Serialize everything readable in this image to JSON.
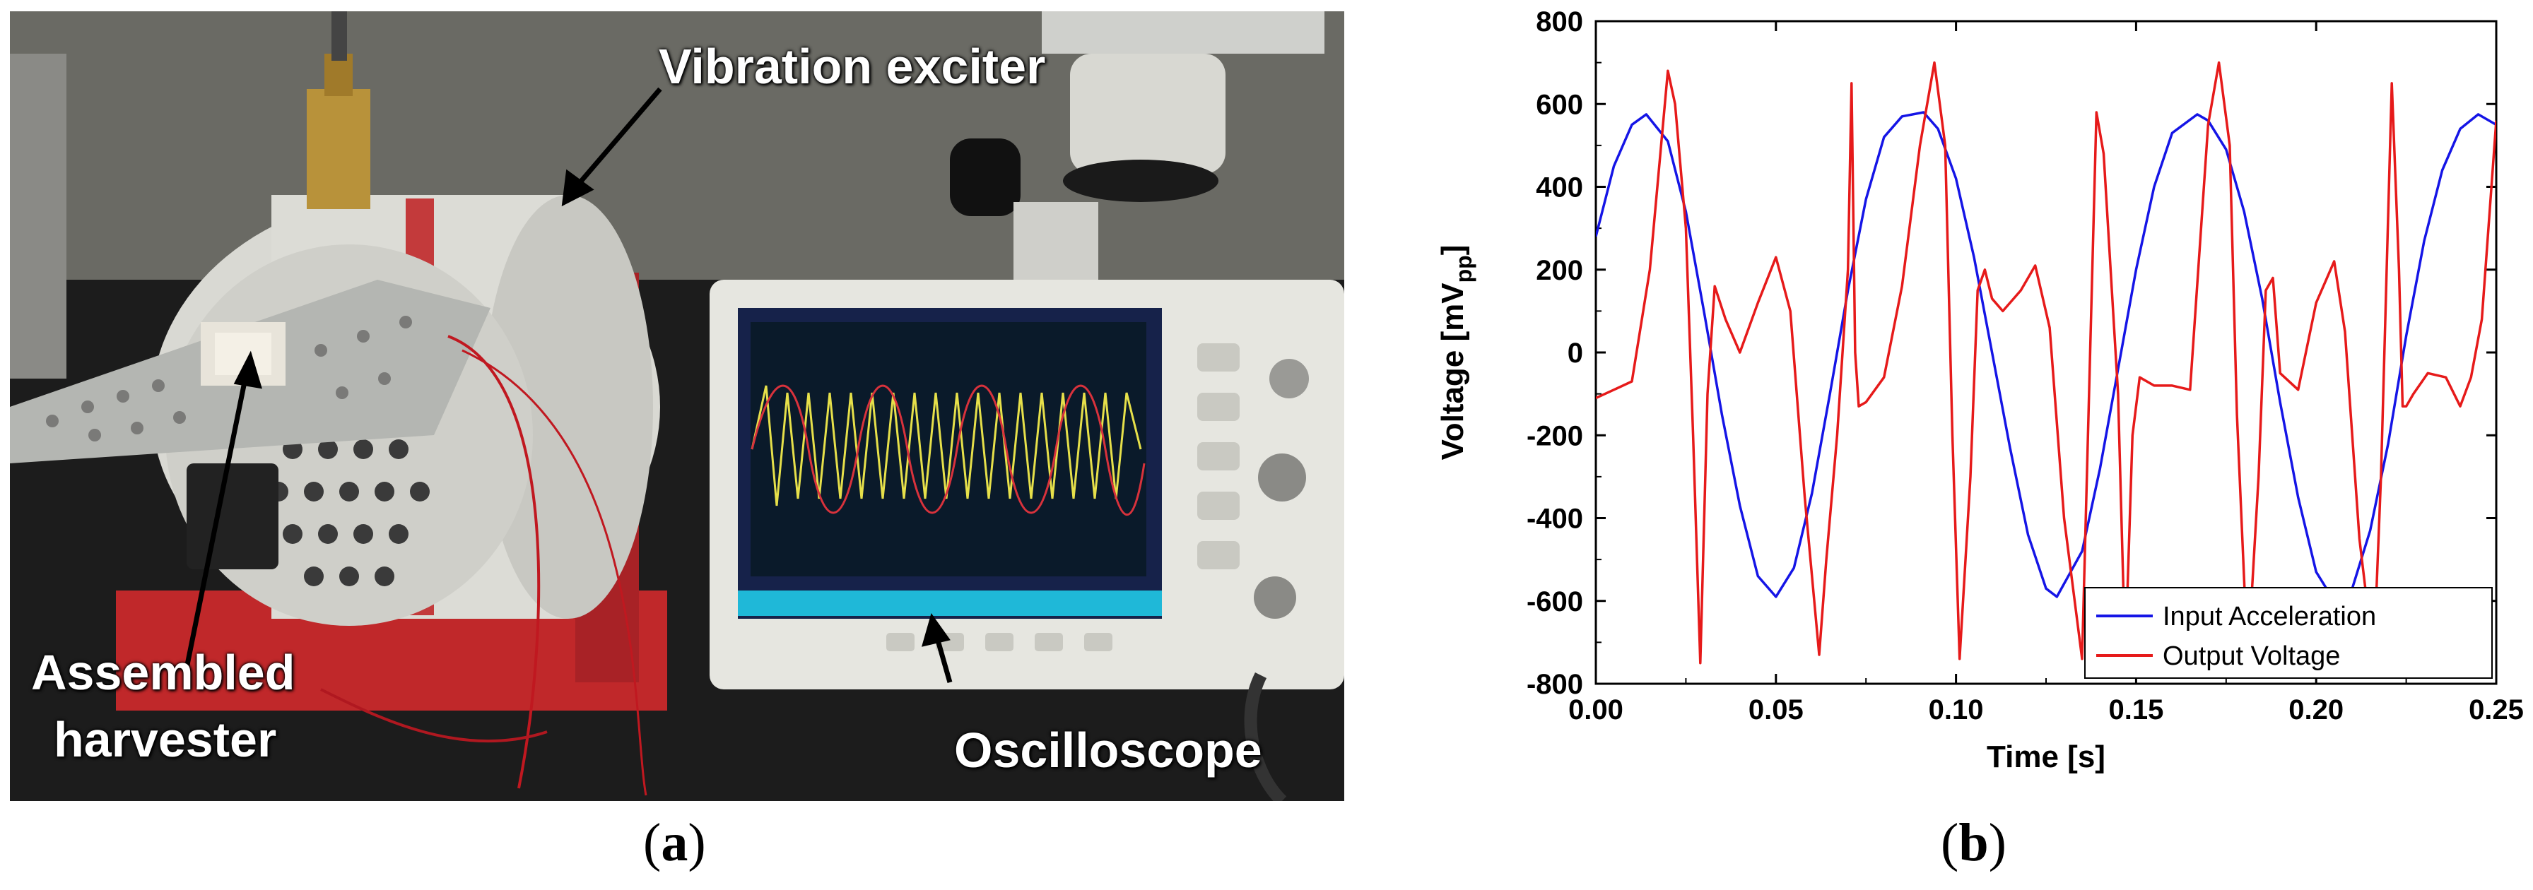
{
  "panel_a": {
    "caption": "a",
    "labels": {
      "vibration_exciter": "Vibration exciter",
      "assembled_harvester_line1": "Assembled",
      "assembled_harvester_line2": "harvester",
      "oscilloscope": "Oscilloscope"
    },
    "colors": {
      "exciter_body": "#dcdcd6",
      "exciter_stand": "#c0282a",
      "scope_body": "#e6e6e0",
      "scope_screen": "#0a1a2a",
      "trace_yellow": "#e6e04a",
      "trace_red": "#d8323c"
    }
  },
  "panel_b": {
    "caption": "b"
  },
  "chart_data": {
    "type": "line",
    "xlabel": "Time  [s]",
    "ylabel_main": "Voltage [mV",
    "ylabel_sub": "pp",
    "ylabel_end": "]",
    "xlim": [
      0.0,
      0.25
    ],
    "ylim": [
      -800,
      800
    ],
    "x_ticks": [
      0.0,
      0.05,
      0.1,
      0.15,
      0.2,
      0.25
    ],
    "x_tick_labels": [
      "0.00",
      "0.05",
      "0.10",
      "0.15",
      "0.20",
      "0.25"
    ],
    "y_ticks": [
      -800,
      -600,
      -400,
      -200,
      0,
      200,
      400,
      600,
      800
    ],
    "y_tick_labels": [
      "-800",
      "-600",
      "-400",
      "-200",
      "0",
      "200",
      "400",
      "600",
      "800"
    ],
    "grid": false,
    "legend_position": "bottom-right",
    "series": [
      {
        "name": "Input  Acceleration",
        "color": "#1515e6",
        "x": [
          0.0,
          0.005,
          0.01,
          0.014,
          0.02,
          0.025,
          0.03,
          0.035,
          0.04,
          0.045,
          0.05,
          0.055,
          0.06,
          0.065,
          0.07,
          0.075,
          0.08,
          0.085,
          0.091,
          0.095,
          0.1,
          0.105,
          0.11,
          0.115,
          0.12,
          0.125,
          0.128,
          0.135,
          0.14,
          0.145,
          0.15,
          0.155,
          0.16,
          0.167,
          0.17,
          0.175,
          0.18,
          0.185,
          0.19,
          0.195,
          0.2,
          0.205,
          0.21,
          0.215,
          0.22,
          0.225,
          0.23,
          0.235,
          0.24,
          0.245,
          0.25
        ],
        "y": [
          280,
          450,
          550,
          575,
          510,
          340,
          100,
          -150,
          -370,
          -540,
          -590,
          -520,
          -340,
          -100,
          150,
          370,
          520,
          570,
          580,
          540,
          420,
          230,
          0,
          -230,
          -440,
          -570,
          -590,
          -480,
          -280,
          -40,
          200,
          400,
          530,
          575,
          560,
          490,
          340,
          130,
          -120,
          -350,
          -530,
          -600,
          -570,
          -430,
          -220,
          40,
          270,
          440,
          540,
          575,
          550
        ]
      },
      {
        "name": "Output Voltage",
        "color": "#e61a1a",
        "x": [
          0.0,
          0.005,
          0.01,
          0.015,
          0.02,
          0.022,
          0.025,
          0.027,
          0.029,
          0.031,
          0.033,
          0.036,
          0.04,
          0.045,
          0.05,
          0.054,
          0.058,
          0.062,
          0.064,
          0.067,
          0.07,
          0.071,
          0.072,
          0.073,
          0.075,
          0.08,
          0.085,
          0.09,
          0.094,
          0.097,
          0.099,
          0.101,
          0.104,
          0.106,
          0.108,
          0.11,
          0.113,
          0.118,
          0.122,
          0.126,
          0.13,
          0.135,
          0.139,
          0.141,
          0.145,
          0.147,
          0.149,
          0.151,
          0.155,
          0.16,
          0.165,
          0.17,
          0.173,
          0.176,
          0.178,
          0.181,
          0.184,
          0.186,
          0.188,
          0.19,
          0.195,
          0.2,
          0.205,
          0.208,
          0.212,
          0.216,
          0.218,
          0.221,
          0.223,
          0.224,
          0.225,
          0.227,
          0.231,
          0.236,
          0.24,
          0.243,
          0.246,
          0.25
        ],
        "y": [
          -110,
          -90,
          -70,
          200,
          680,
          600,
          300,
          -200,
          -750,
          -100,
          160,
          80,
          0,
          120,
          230,
          100,
          -350,
          -730,
          -500,
          -200,
          200,
          650,
          0,
          -130,
          -120,
          -60,
          160,
          500,
          700,
          500,
          -200,
          -740,
          -300,
          150,
          200,
          130,
          100,
          150,
          210,
          60,
          -400,
          -740,
          580,
          480,
          -100,
          -740,
          -200,
          -60,
          -80,
          -80,
          -90,
          550,
          700,
          500,
          -150,
          -750,
          -300,
          150,
          180,
          -50,
          -90,
          120,
          220,
          50,
          -450,
          -740,
          -300,
          650,
          200,
          -130,
          -130,
          -100,
          -50,
          -60,
          -130,
          -60,
          80,
          560
        ]
      }
    ]
  }
}
